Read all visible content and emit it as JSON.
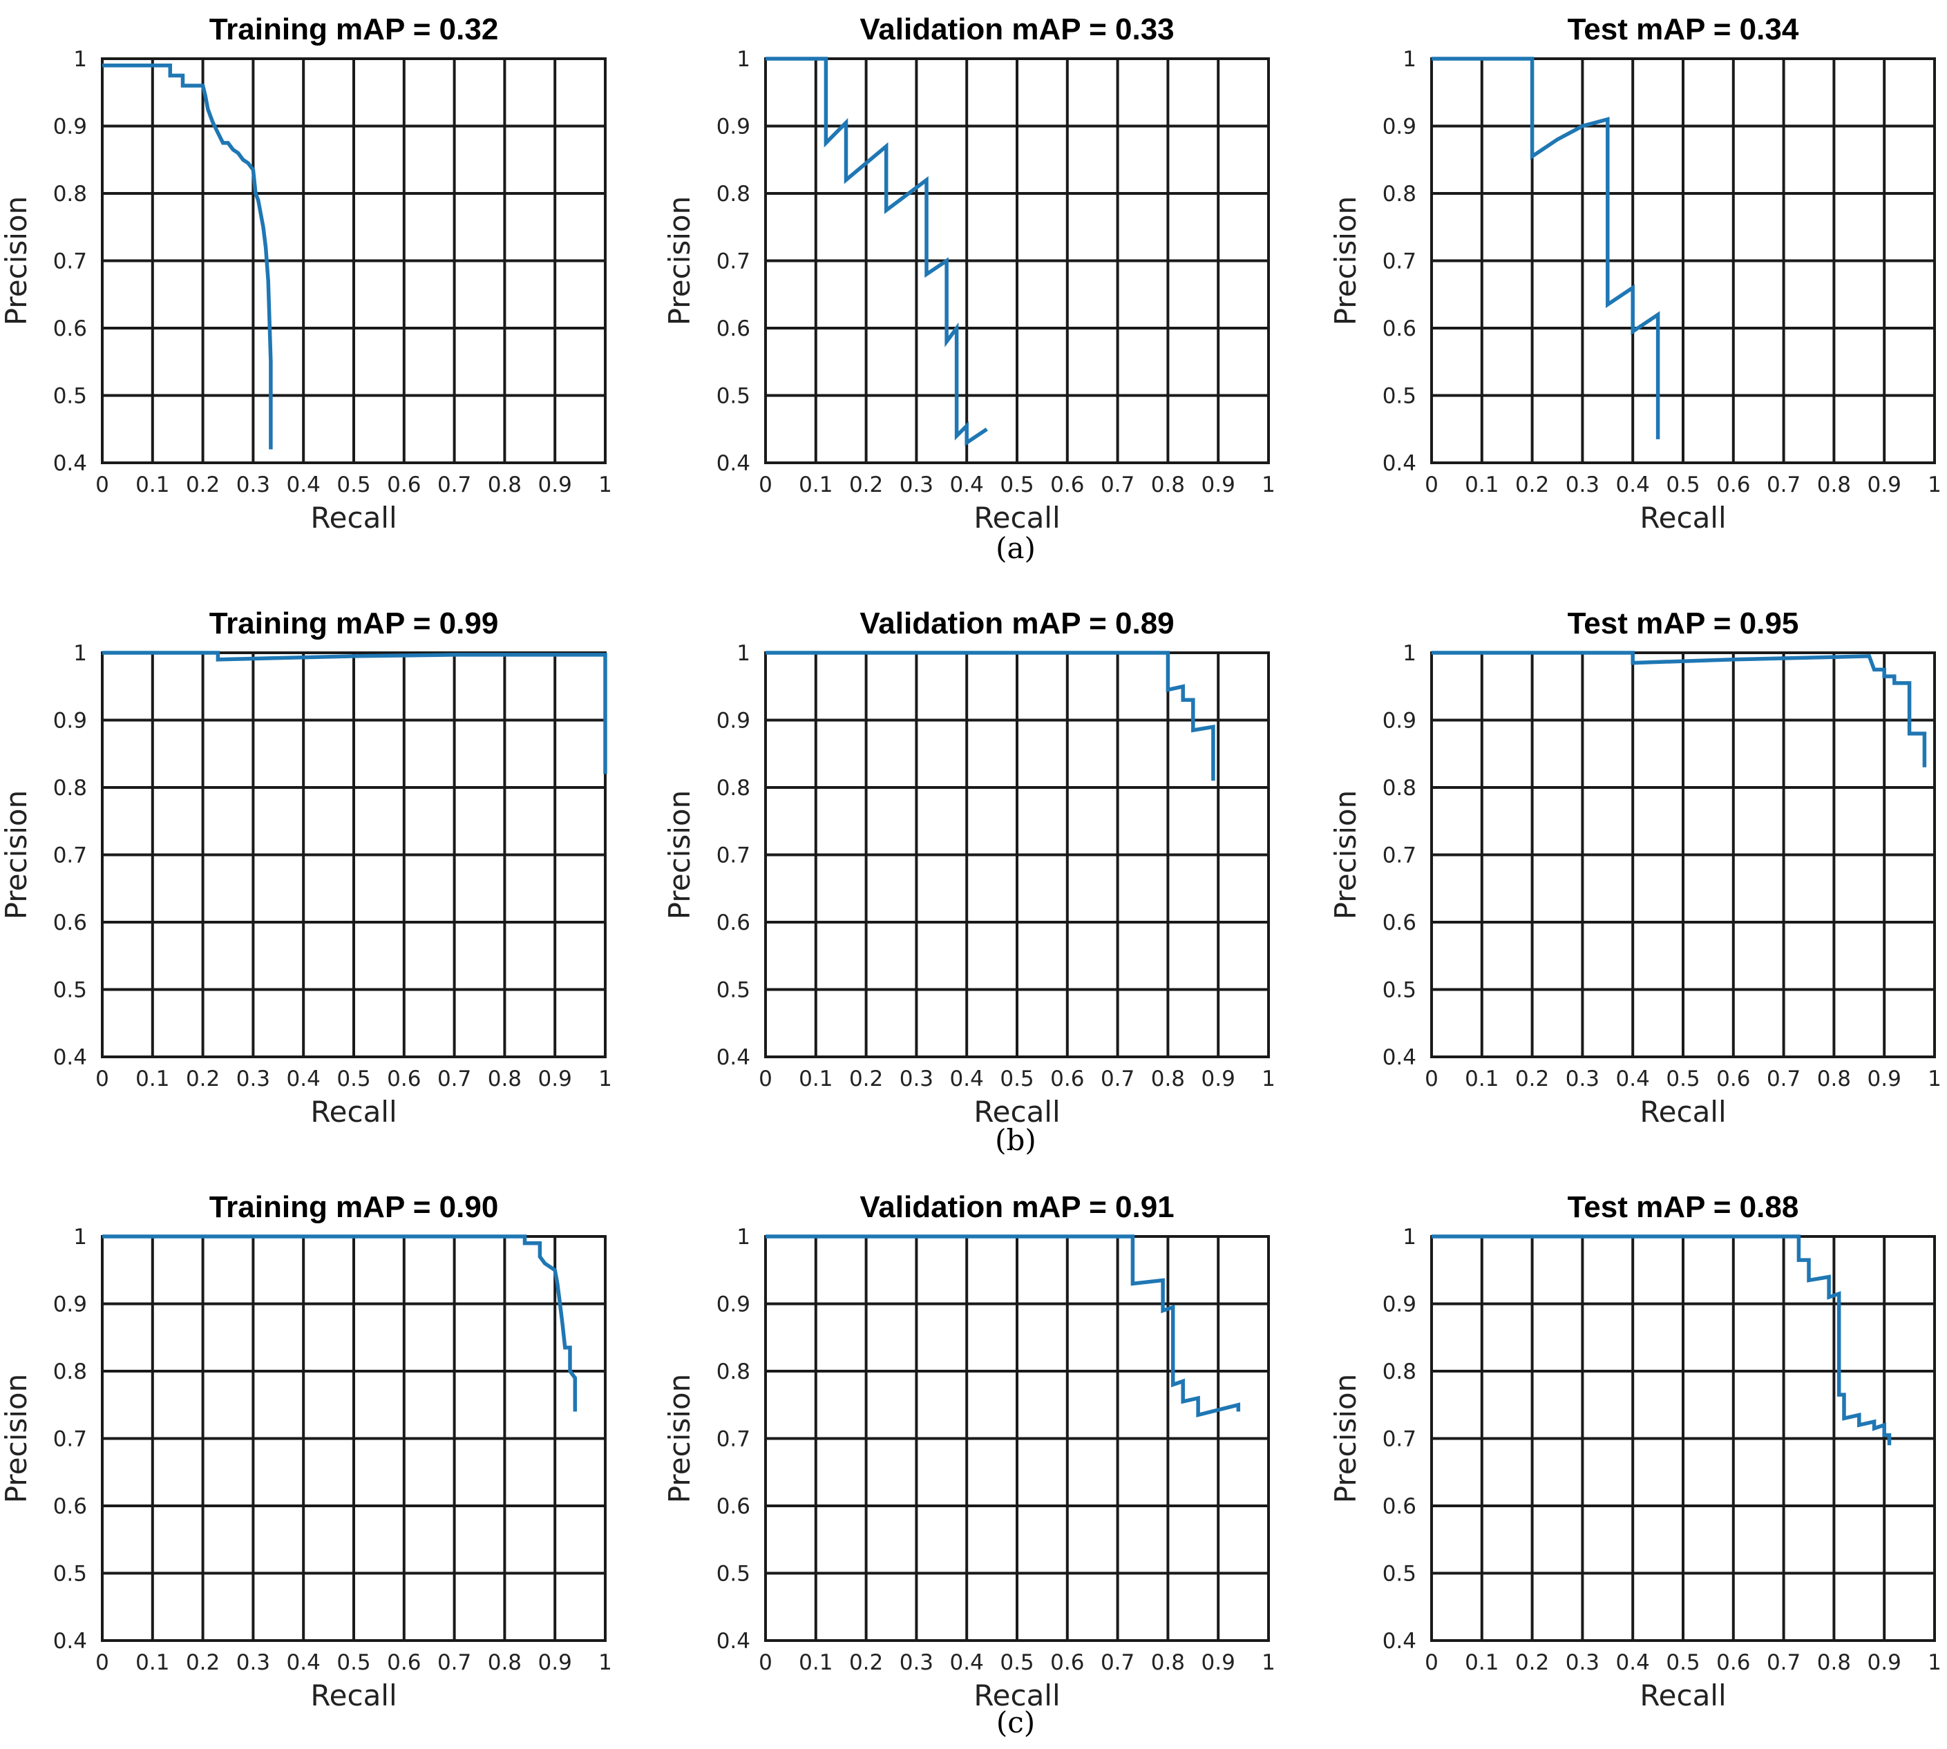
{
  "figure": {
    "captions": [
      "(a)",
      "(b)",
      "(c)"
    ],
    "line_color": "#1f77b4"
  },
  "chart_data": [
    {
      "type": "line",
      "row": 0,
      "col": 0,
      "title": "Training mAP = 0.32",
      "xlabel": "Recall",
      "ylabel": "Precision",
      "xlim": [
        0,
        1
      ],
      "ylim": [
        0.4,
        1
      ],
      "grid": true,
      "xticks": [
        "0",
        "0.1",
        "0.2",
        "0.3",
        "0.4",
        "0.5",
        "0.6",
        "0.7",
        "0.8",
        "0.9",
        "1"
      ],
      "yticks": [
        "0.4",
        "0.5",
        "0.6",
        "0.7",
        "0.8",
        "0.9",
        "1"
      ],
      "series": [
        {
          "name": "precision-recall",
          "points": [
            [
              0,
              0.99
            ],
            [
              0.135,
              0.99
            ],
            [
              0.135,
              0.975
            ],
            [
              0.16,
              0.975
            ],
            [
              0.16,
              0.96
            ],
            [
              0.2,
              0.96
            ],
            [
              0.205,
              0.945
            ],
            [
              0.21,
              0.925
            ],
            [
              0.215,
              0.915
            ],
            [
              0.22,
              0.905
            ],
            [
              0.23,
              0.89
            ],
            [
              0.24,
              0.875
            ],
            [
              0.25,
              0.875
            ],
            [
              0.26,
              0.865
            ],
            [
              0.27,
              0.86
            ],
            [
              0.28,
              0.85
            ],
            [
              0.29,
              0.845
            ],
            [
              0.3,
              0.835
            ],
            [
              0.305,
              0.8
            ],
            [
              0.31,
              0.79
            ],
            [
              0.32,
              0.75
            ],
            [
              0.325,
              0.72
            ],
            [
              0.33,
              0.67
            ],
            [
              0.335,
              0.55
            ],
            [
              0.335,
              0.42
            ]
          ]
        }
      ]
    },
    {
      "type": "line",
      "row": 0,
      "col": 1,
      "title": "Validation mAP = 0.33",
      "xlabel": "Recall",
      "ylabel": "Precision",
      "xlim": [
        0,
        1
      ],
      "ylim": [
        0.4,
        1
      ],
      "grid": true,
      "xticks": [
        "0",
        "0.1",
        "0.2",
        "0.3",
        "0.4",
        "0.5",
        "0.6",
        "0.7",
        "0.8",
        "0.9",
        "1"
      ],
      "yticks": [
        "0.4",
        "0.5",
        "0.6",
        "0.7",
        "0.8",
        "0.9",
        "1"
      ],
      "series": [
        {
          "name": "precision-recall",
          "points": [
            [
              0,
              1.0
            ],
            [
              0.12,
              1.0
            ],
            [
              0.12,
              0.875
            ],
            [
              0.16,
              0.905
            ],
            [
              0.16,
              0.82
            ],
            [
              0.24,
              0.87
            ],
            [
              0.24,
              0.775
            ],
            [
              0.32,
              0.82
            ],
            [
              0.32,
              0.68
            ],
            [
              0.36,
              0.7
            ],
            [
              0.36,
              0.58
            ],
            [
              0.38,
              0.6
            ],
            [
              0.38,
              0.44
            ],
            [
              0.4,
              0.455
            ],
            [
              0.4,
              0.43
            ],
            [
              0.44,
              0.45
            ]
          ]
        }
      ]
    },
    {
      "type": "line",
      "row": 0,
      "col": 2,
      "title": "Test mAP = 0.34",
      "xlabel": "Recall",
      "ylabel": "Precision",
      "xlim": [
        0,
        1
      ],
      "ylim": [
        0.4,
        1
      ],
      "grid": true,
      "xticks": [
        "0",
        "0.1",
        "0.2",
        "0.3",
        "0.4",
        "0.5",
        "0.6",
        "0.7",
        "0.8",
        "0.9",
        "1"
      ],
      "yticks": [
        "0.4",
        "0.5",
        "0.6",
        "0.7",
        "0.8",
        "0.9",
        "1"
      ],
      "series": [
        {
          "name": "precision-recall",
          "points": [
            [
              0,
              1.0
            ],
            [
              0.2,
              1.0
            ],
            [
              0.2,
              0.855
            ],
            [
              0.25,
              0.88
            ],
            [
              0.3,
              0.9
            ],
            [
              0.35,
              0.91
            ],
            [
              0.35,
              0.635
            ],
            [
              0.4,
              0.66
            ],
            [
              0.4,
              0.595
            ],
            [
              0.45,
              0.62
            ],
            [
              0.45,
              0.435
            ]
          ]
        }
      ]
    },
    {
      "type": "line",
      "row": 1,
      "col": 0,
      "title": "Training mAP = 0.99",
      "xlabel": "Recall",
      "ylabel": "Precision",
      "xlim": [
        0,
        1
      ],
      "ylim": [
        0.4,
        1
      ],
      "grid": true,
      "xticks": [
        "0",
        "0.1",
        "0.2",
        "0.3",
        "0.4",
        "0.5",
        "0.6",
        "0.7",
        "0.8",
        "0.9",
        "1"
      ],
      "yticks": [
        "0.4",
        "0.5",
        "0.6",
        "0.7",
        "0.8",
        "0.9",
        "1"
      ],
      "series": [
        {
          "name": "precision-recall",
          "points": [
            [
              0,
              1.0
            ],
            [
              0.23,
              1.0
            ],
            [
              0.23,
              0.99
            ],
            [
              0.5,
              0.995
            ],
            [
              0.7,
              0.997
            ],
            [
              1.0,
              0.997
            ],
            [
              1.0,
              0.82
            ]
          ]
        }
      ]
    },
    {
      "type": "line",
      "row": 1,
      "col": 1,
      "title": "Validation mAP = 0.89",
      "xlabel": "Recall",
      "ylabel": "Precision",
      "xlim": [
        0,
        1
      ],
      "ylim": [
        0.4,
        1
      ],
      "grid": true,
      "xticks": [
        "0",
        "0.1",
        "0.2",
        "0.3",
        "0.4",
        "0.5",
        "0.6",
        "0.7",
        "0.8",
        "0.9",
        "1"
      ],
      "yticks": [
        "0.4",
        "0.5",
        "0.6",
        "0.7",
        "0.8",
        "0.9",
        "1"
      ],
      "series": [
        {
          "name": "precision-recall",
          "points": [
            [
              0,
              1.0
            ],
            [
              0.8,
              1.0
            ],
            [
              0.8,
              0.945
            ],
            [
              0.83,
              0.95
            ],
            [
              0.83,
              0.93
            ],
            [
              0.85,
              0.93
            ],
            [
              0.85,
              0.885
            ],
            [
              0.89,
              0.89
            ],
            [
              0.89,
              0.81
            ]
          ]
        }
      ]
    },
    {
      "type": "line",
      "row": 1,
      "col": 2,
      "title": "Test mAP = 0.95",
      "xlabel": "Recall",
      "ylabel": "Precision",
      "xlim": [
        0,
        1
      ],
      "ylim": [
        0.4,
        1
      ],
      "grid": true,
      "xticks": [
        "0",
        "0.1",
        "0.2",
        "0.3",
        "0.4",
        "0.5",
        "0.6",
        "0.7",
        "0.8",
        "0.9",
        "1"
      ],
      "yticks": [
        "0.4",
        "0.5",
        "0.6",
        "0.7",
        "0.8",
        "0.9",
        "1"
      ],
      "series": [
        {
          "name": "precision-recall",
          "points": [
            [
              0,
              1.0
            ],
            [
              0.4,
              1.0
            ],
            [
              0.4,
              0.985
            ],
            [
              0.6,
              0.99
            ],
            [
              0.87,
              0.995
            ],
            [
              0.88,
              0.975
            ],
            [
              0.9,
              0.975
            ],
            [
              0.9,
              0.965
            ],
            [
              0.92,
              0.965
            ],
            [
              0.92,
              0.955
            ],
            [
              0.95,
              0.955
            ],
            [
              0.95,
              0.88
            ],
            [
              0.98,
              0.88
            ],
            [
              0.98,
              0.83
            ]
          ]
        }
      ]
    },
    {
      "type": "line",
      "row": 2,
      "col": 0,
      "title": "Training mAP = 0.90",
      "xlabel": "Recall",
      "ylabel": "Precision",
      "xlim": [
        0,
        1
      ],
      "ylim": [
        0.4,
        1
      ],
      "grid": true,
      "xticks": [
        "0",
        "0.1",
        "0.2",
        "0.3",
        "0.4",
        "0.5",
        "0.6",
        "0.7",
        "0.8",
        "0.9",
        "1"
      ],
      "yticks": [
        "0.4",
        "0.5",
        "0.6",
        "0.7",
        "0.8",
        "0.9",
        "1"
      ],
      "series": [
        {
          "name": "precision-recall",
          "points": [
            [
              0,
              1.0
            ],
            [
              0.84,
              1.0
            ],
            [
              0.84,
              0.99
            ],
            [
              0.87,
              0.99
            ],
            [
              0.87,
              0.97
            ],
            [
              0.88,
              0.96
            ],
            [
              0.89,
              0.955
            ],
            [
              0.9,
              0.95
            ],
            [
              0.905,
              0.93
            ],
            [
              0.91,
              0.9
            ],
            [
              0.915,
              0.87
            ],
            [
              0.92,
              0.835
            ],
            [
              0.93,
              0.835
            ],
            [
              0.93,
              0.8
            ],
            [
              0.94,
              0.79
            ],
            [
              0.94,
              0.74
            ]
          ]
        }
      ]
    },
    {
      "type": "line",
      "row": 2,
      "col": 1,
      "title": "Validation mAP = 0.91",
      "xlabel": "Recall",
      "ylabel": "Precision",
      "xlim": [
        0,
        1
      ],
      "ylim": [
        0.4,
        1
      ],
      "grid": true,
      "xticks": [
        "0",
        "0.1",
        "0.2",
        "0.3",
        "0.4",
        "0.5",
        "0.6",
        "0.7",
        "0.8",
        "0.9",
        "1"
      ],
      "yticks": [
        "0.4",
        "0.5",
        "0.6",
        "0.7",
        "0.8",
        "0.9",
        "1"
      ],
      "series": [
        {
          "name": "precision-recall",
          "points": [
            [
              0,
              1.0
            ],
            [
              0.73,
              1.0
            ],
            [
              0.73,
              0.93
            ],
            [
              0.79,
              0.935
            ],
            [
              0.79,
              0.89
            ],
            [
              0.81,
              0.895
            ],
            [
              0.81,
              0.78
            ],
            [
              0.83,
              0.785
            ],
            [
              0.83,
              0.755
            ],
            [
              0.86,
              0.76
            ],
            [
              0.86,
              0.735
            ],
            [
              0.94,
              0.75
            ],
            [
              0.94,
              0.74
            ]
          ]
        }
      ]
    },
    {
      "type": "line",
      "row": 2,
      "col": 2,
      "title": "Test mAP = 0.88",
      "xlabel": "Recall",
      "ylabel": "Precision",
      "xlim": [
        0,
        1
      ],
      "ylim": [
        0.4,
        1
      ],
      "grid": true,
      "xticks": [
        "0",
        "0.1",
        "0.2",
        "0.3",
        "0.4",
        "0.5",
        "0.6",
        "0.7",
        "0.8",
        "0.9",
        "1"
      ],
      "yticks": [
        "0.4",
        "0.5",
        "0.6",
        "0.7",
        "0.8",
        "0.9",
        "1"
      ],
      "series": [
        {
          "name": "precision-recall",
          "points": [
            [
              0,
              1.0
            ],
            [
              0.73,
              1.0
            ],
            [
              0.73,
              0.965
            ],
            [
              0.75,
              0.965
            ],
            [
              0.75,
              0.935
            ],
            [
              0.79,
              0.94
            ],
            [
              0.79,
              0.91
            ],
            [
              0.81,
              0.915
            ],
            [
              0.81,
              0.765
            ],
            [
              0.82,
              0.765
            ],
            [
              0.82,
              0.73
            ],
            [
              0.85,
              0.735
            ],
            [
              0.85,
              0.72
            ],
            [
              0.88,
              0.725
            ],
            [
              0.88,
              0.715
            ],
            [
              0.9,
              0.72
            ],
            [
              0.9,
              0.705
            ],
            [
              0.91,
              0.705
            ],
            [
              0.91,
              0.69
            ]
          ]
        }
      ]
    }
  ]
}
